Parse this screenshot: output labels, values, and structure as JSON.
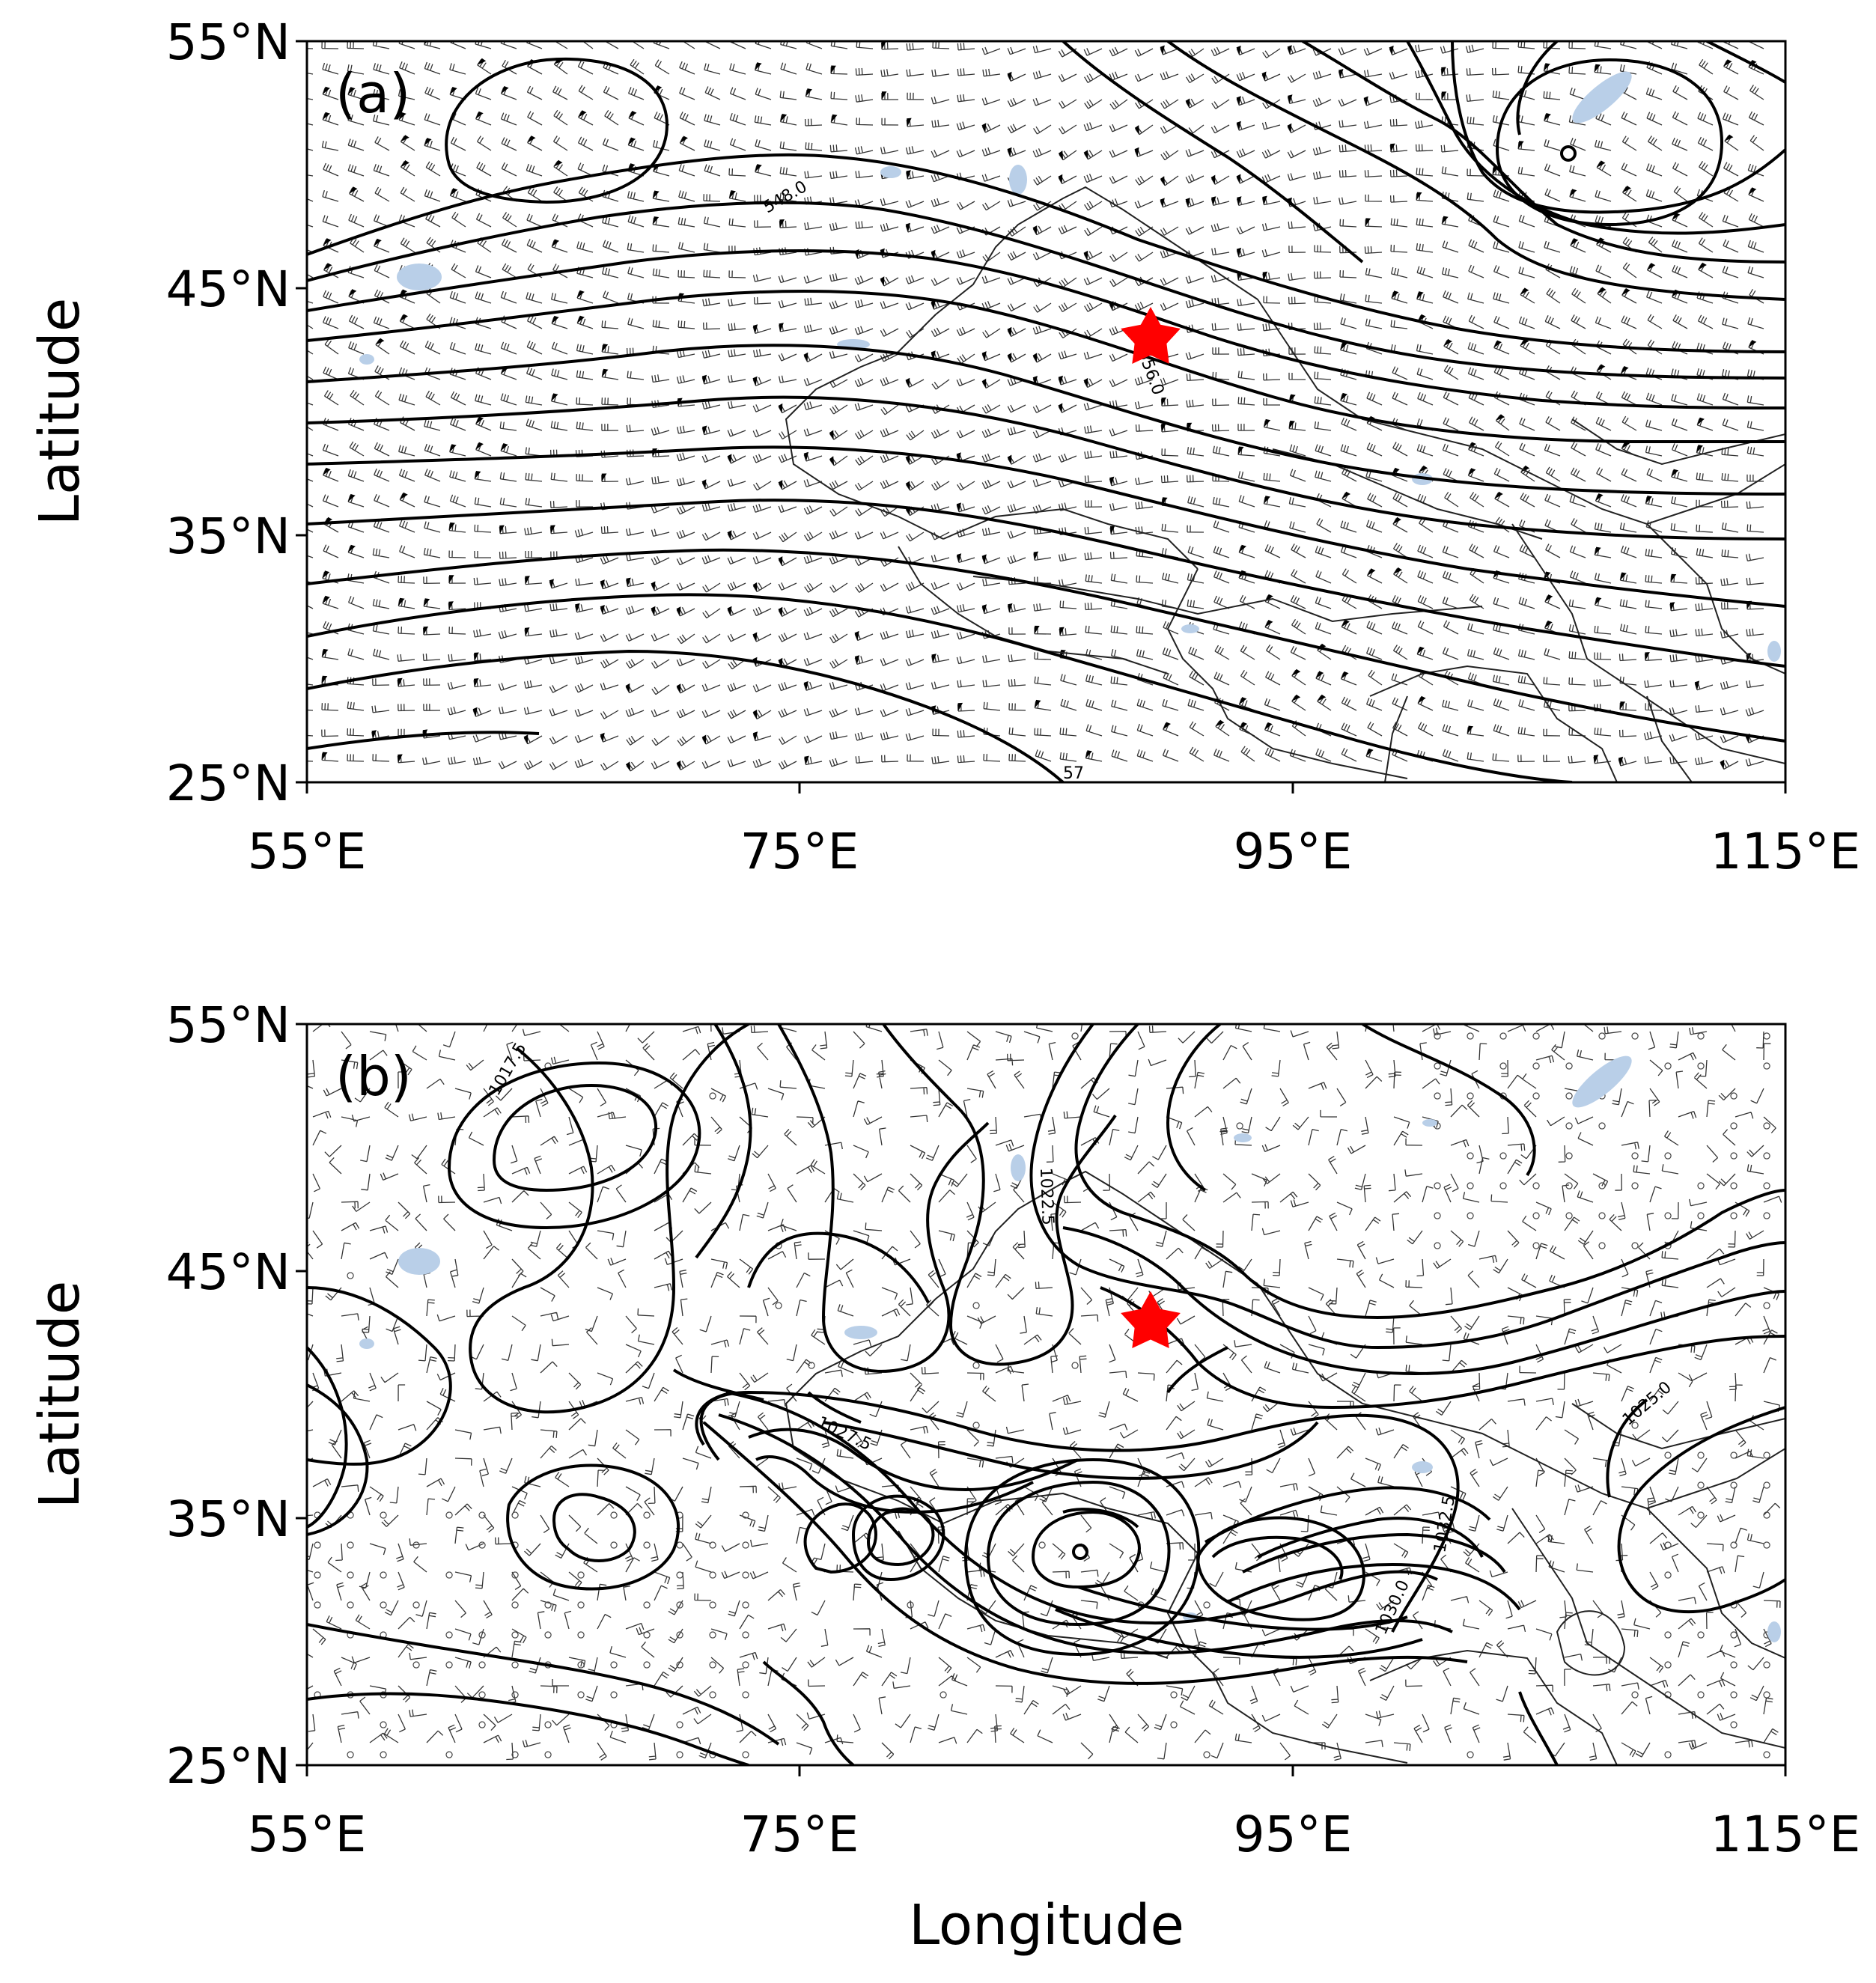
{
  "figure": {
    "x_axis_label": "Longitude",
    "y_axis_label": "Latitude",
    "colors": {
      "contour": "#000000",
      "barb": "#333333",
      "lake": "#b9cfe8",
      "border": "#222222",
      "star": "#ff0000"
    }
  },
  "panels": [
    {
      "label": "(a)",
      "x_ticks": [
        "55°E",
        "75°E",
        "95°E",
        "115°E"
      ],
      "y_ticks": [
        "55°N",
        "45°N",
        "35°N",
        "25°N"
      ],
      "contour_labels": [
        "548.0",
        "556.0",
        "57"
      ],
      "marker": "red-star"
    },
    {
      "label": "(b)",
      "x_ticks": [
        "55°E",
        "75°E",
        "95°E",
        "115°E"
      ],
      "y_ticks": [
        "55°N",
        "45°N",
        "35°N",
        "25°N"
      ],
      "contour_labels": [
        "1017.5",
        "1022.5",
        "1027.5",
        "1025.0",
        "1030.0",
        "1032.5"
      ],
      "marker": "red-star"
    }
  ],
  "chart_data": [
    {
      "type": "map",
      "panel": "(a)",
      "lon_range": [
        55,
        115
      ],
      "lat_range": [
        25,
        55
      ],
      "marker": {
        "lon": 89,
        "lat": 43
      },
      "contour_label_values": [
        548.0,
        556.0
      ]
    },
    {
      "type": "map",
      "panel": "(b)",
      "lon_range": [
        55,
        115
      ],
      "lat_range": [
        25,
        55
      ],
      "marker": {
        "lon": 89,
        "lat": 43
      },
      "contour_label_values": [
        1017.5,
        1022.5,
        1027.5,
        1025.0,
        1030.0,
        1032.5
      ]
    }
  ]
}
